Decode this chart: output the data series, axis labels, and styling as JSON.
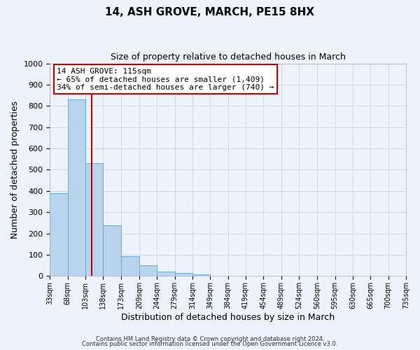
{
  "title": "14, ASH GROVE, MARCH, PE15 8HX",
  "subtitle": "Size of property relative to detached houses in March",
  "xlabel": "Distribution of detached houses by size in March",
  "ylabel": "Number of detached properties",
  "bin_edges": [
    33,
    68,
    103,
    138,
    173,
    209,
    244,
    279,
    314,
    349,
    384,
    419,
    454,
    489,
    524,
    560,
    595,
    630,
    665,
    700,
    735
  ],
  "bin_labels": [
    "33sqm",
    "68sqm",
    "103sqm",
    "138sqm",
    "173sqm",
    "209sqm",
    "244sqm",
    "279sqm",
    "314sqm",
    "349sqm",
    "384sqm",
    "419sqm",
    "454sqm",
    "489sqm",
    "524sqm",
    "560sqm",
    "595sqm",
    "630sqm",
    "665sqm",
    "700sqm",
    "735sqm"
  ],
  "bar_heights": [
    390,
    830,
    530,
    240,
    95,
    50,
    22,
    15,
    7,
    0,
    0,
    0,
    0,
    0,
    0,
    0,
    0,
    0,
    0,
    0
  ],
  "bar_color": "#b8d4ec",
  "bar_edge_color": "#6aaad4",
  "property_line_x": 115,
  "property_line_color": "#cc0000",
  "ylim": [
    0,
    1000
  ],
  "yticks": [
    0,
    100,
    200,
    300,
    400,
    500,
    600,
    700,
    800,
    900,
    1000
  ],
  "annotation_title": "14 ASH GROVE: 115sqm",
  "annotation_line1": "← 65% of detached houses are smaller (1,409)",
  "annotation_line2": "34% of semi-detached houses are larger (740) →",
  "annotation_box_color": "#ffffff",
  "annotation_box_edge": "#cc0000",
  "grid_color": "#d0d8e8",
  "background_color": "#eef2fb",
  "footer_line1": "Contains HM Land Registry data © Crown copyright and database right 2024.",
  "footer_line2": "Contains public sector information licensed under the Open Government Licence v3.0."
}
